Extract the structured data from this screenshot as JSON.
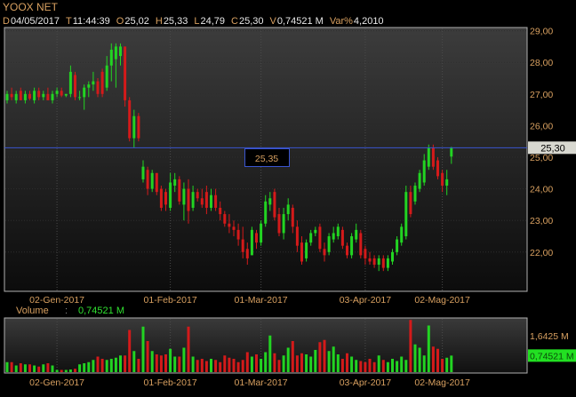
{
  "header": {
    "title": "YOOX NET",
    "info": [
      {
        "key": "D",
        "value": "04/05/2017"
      },
      {
        "key": "T",
        "value": "11:44:39"
      },
      {
        "key": "O",
        "value": "25,02"
      },
      {
        "key": "H",
        "value": "25,33"
      },
      {
        "key": "L",
        "value": "24,79"
      },
      {
        "key": "C",
        "value": "25,30"
      },
      {
        "key": "V",
        "value": "0,74521 M"
      },
      {
        "key": "Var%",
        "value": "4,2010"
      }
    ]
  },
  "volume_header": {
    "label": "Volume",
    "separator": ":",
    "value": "0,74521 M"
  },
  "colors": {
    "up": "#22d422",
    "down": "#d41a1a",
    "last_line": "#3a55d0",
    "axis_text": "#d8a060"
  },
  "chart_data": [
    {
      "type": "candlestick",
      "title": "YOOX NET",
      "y_axis_position": "right",
      "ylim": [
        20.75,
        29.1
      ],
      "y_ticks": [
        "29,00",
        "28,00",
        "27,00",
        "26,00",
        "25,00",
        "24,00",
        "23,00",
        "22,00"
      ],
      "y_tick_values": [
        29,
        28,
        27,
        26,
        25,
        24,
        23,
        22
      ],
      "x_ticks": [
        "02-Gen-2017",
        "01-Feb-2017",
        "01-Mar-2017",
        "03-Apr-2017",
        "02-Mag-2017"
      ],
      "x_tick_index": [
        11,
        36,
        56,
        79,
        96
      ],
      "grid": true,
      "last_price": {
        "value": 25.3,
        "label": "25,30"
      },
      "cursor_label": {
        "value": 25.35,
        "label": "25,35"
      },
      "ohlc_fields": [
        "open",
        "high",
        "low",
        "close"
      ],
      "candles": [
        [
          26.8,
          27.1,
          26.7,
          27.0
        ],
        [
          27.0,
          27.2,
          26.8,
          26.9
        ],
        [
          26.8,
          27.1,
          26.7,
          27.0
        ],
        [
          27.1,
          27.2,
          26.8,
          26.8
        ],
        [
          26.8,
          27.1,
          26.7,
          27.0
        ],
        [
          27.0,
          27.1,
          26.8,
          26.85
        ],
        [
          26.8,
          27.2,
          26.7,
          27.1
        ],
        [
          27.1,
          27.2,
          26.8,
          26.9
        ],
        [
          26.9,
          27.1,
          26.8,
          27.0
        ],
        [
          27.0,
          27.2,
          26.8,
          26.8
        ],
        [
          26.8,
          27.1,
          26.7,
          27.0
        ],
        [
          27.0,
          27.2,
          26.9,
          27.1
        ],
        [
          27.1,
          27.2,
          26.9,
          26.95
        ],
        [
          26.95,
          27.0,
          26.9,
          27.0
        ],
        [
          27.0,
          27.9,
          26.9,
          27.7
        ],
        [
          27.6,
          27.7,
          26.8,
          26.9
        ],
        [
          26.9,
          27.1,
          26.8,
          26.9
        ],
        [
          26.9,
          27.3,
          26.5,
          27.2
        ],
        [
          27.2,
          27.4,
          26.9,
          27.3
        ],
        [
          27.3,
          27.7,
          27.1,
          27.4
        ],
        [
          27.4,
          27.5,
          26.9,
          27.0
        ],
        [
          27.7,
          27.8,
          26.9,
          27.0
        ],
        [
          27.2,
          28.2,
          27.1,
          27.9
        ],
        [
          27.9,
          28.6,
          27.4,
          28.4
        ],
        [
          28.1,
          28.6,
          27.2,
          28.5
        ],
        [
          28.2,
          28.6,
          27.9,
          28.5
        ],
        [
          28.5,
          28.5,
          26.6,
          26.8
        ],
        [
          26.8,
          26.9,
          25.5,
          25.6
        ],
        [
          25.6,
          26.5,
          25.3,
          26.3
        ],
        [
          26.3,
          26.4,
          25.5,
          25.6
        ],
        [
          24.3,
          24.9,
          24.2,
          24.7
        ],
        [
          24.6,
          24.7,
          23.8,
          24.0
        ],
        [
          24.0,
          24.6,
          23.9,
          24.5
        ],
        [
          24.5,
          24.5,
          23.8,
          23.9
        ],
        [
          24.0,
          24.1,
          23.3,
          23.4
        ],
        [
          23.9,
          24.0,
          23.3,
          23.5
        ],
        [
          23.4,
          24.5,
          23.3,
          24.2
        ],
        [
          24.1,
          24.5,
          23.9,
          24.3
        ],
        [
          24.3,
          24.4,
          23.5,
          23.6
        ],
        [
          23.5,
          24.2,
          23.0,
          24.0
        ],
        [
          24.0,
          24.3,
          22.9,
          23.3
        ],
        [
          23.4,
          24.1,
          23.3,
          23.9
        ],
        [
          23.9,
          24.0,
          23.6,
          23.7
        ],
        [
          23.7,
          24.0,
          23.4,
          23.5
        ],
        [
          23.9,
          24.1,
          23.2,
          23.4
        ],
        [
          23.4,
          24.0,
          23.3,
          23.8
        ],
        [
          23.8,
          24.0,
          23.3,
          23.4
        ],
        [
          23.4,
          23.6,
          23.0,
          23.2
        ],
        [
          23.2,
          23.3,
          22.8,
          22.9
        ],
        [
          22.9,
          23.2,
          22.6,
          22.8
        ],
        [
          22.8,
          23.0,
          22.5,
          22.7
        ],
        [
          22.7,
          22.9,
          22.2,
          22.4
        ],
        [
          22.4,
          22.8,
          21.8,
          22.0
        ],
        [
          22.1,
          22.3,
          21.6,
          21.8
        ],
        [
          21.9,
          22.8,
          21.9,
          22.7
        ],
        [
          22.6,
          22.7,
          22.1,
          22.3
        ],
        [
          22.3,
          23.0,
          22.2,
          22.9
        ],
        [
          22.9,
          23.8,
          22.8,
          23.6
        ],
        [
          23.5,
          23.9,
          23.3,
          23.7
        ],
        [
          23.9,
          24.0,
          23.0,
          23.1
        ],
        [
          23.2,
          23.4,
          22.5,
          22.6
        ],
        [
          22.6,
          23.4,
          22.4,
          23.2
        ],
        [
          23.2,
          23.7,
          23.0,
          23.5
        ],
        [
          23.4,
          23.5,
          22.6,
          22.8
        ],
        [
          22.8,
          23.0,
          22.0,
          22.2
        ],
        [
          22.3,
          22.5,
          21.6,
          21.7
        ],
        [
          21.8,
          22.4,
          21.7,
          22.3
        ],
        [
          22.3,
          22.7,
          22.2,
          22.6
        ],
        [
          22.6,
          22.8,
          22.5,
          22.7
        ],
        [
          22.8,
          22.9,
          22.0,
          22.1
        ],
        [
          22.1,
          22.3,
          21.7,
          21.9
        ],
        [
          22.0,
          22.6,
          21.9,
          22.5
        ],
        [
          22.4,
          22.8,
          22.3,
          22.6
        ],
        [
          22.5,
          22.9,
          22.4,
          22.8
        ],
        [
          22.7,
          22.8,
          22.1,
          22.2
        ],
        [
          22.2,
          22.3,
          21.8,
          21.9
        ],
        [
          21.9,
          22.6,
          21.8,
          22.5
        ],
        [
          22.4,
          22.9,
          22.3,
          22.7
        ],
        [
          22.6,
          22.7,
          21.8,
          21.9
        ],
        [
          22.1,
          22.2,
          21.6,
          21.8
        ],
        [
          21.8,
          22.0,
          21.6,
          21.7
        ],
        [
          21.8,
          21.9,
          21.5,
          21.6
        ],
        [
          21.6,
          21.9,
          21.4,
          21.8
        ],
        [
          21.8,
          21.9,
          21.4,
          21.5
        ],
        [
          21.5,
          21.9,
          21.4,
          21.8
        ],
        [
          21.7,
          22.1,
          21.6,
          22.0
        ],
        [
          22.0,
          22.5,
          21.9,
          22.4
        ],
        [
          22.3,
          22.9,
          22.2,
          22.8
        ],
        [
          22.5,
          24.1,
          22.4,
          23.9
        ],
        [
          23.9,
          24.1,
          23.1,
          23.2
        ],
        [
          23.6,
          24.2,
          23.5,
          24.1
        ],
        [
          24.0,
          24.6,
          23.9,
          24.5
        ],
        [
          24.2,
          25.1,
          24.1,
          24.9
        ],
        [
          24.7,
          25.4,
          24.6,
          25.3
        ],
        [
          25.3,
          25.4,
          24.6,
          24.7
        ],
        [
          24.9,
          25.0,
          24.3,
          24.4
        ],
        [
          24.5,
          24.6,
          23.9,
          24.1
        ],
        [
          24.1,
          24.6,
          23.8,
          24.3
        ],
        [
          25.02,
          25.33,
          24.79,
          25.3
        ]
      ]
    },
    {
      "type": "bar",
      "title": "Volume",
      "unit": "M",
      "y_axis_position": "right",
      "ylim": [
        0,
        2.45
      ],
      "y_ticks": [
        "1,6425 M"
      ],
      "y_tick_values": [
        1.6425
      ],
      "last_value": {
        "value": 0.74521,
        "label": "0,74521 M"
      },
      "x_ticks": [
        "02-Gen-2017",
        "01-Feb-2017",
        "01-Mar-2017",
        "03-Apr-2017",
        "02-Mag-2017"
      ],
      "x_tick_index": [
        11,
        36,
        56,
        79,
        96
      ],
      "values": [
        0.45,
        0.45,
        0.3,
        0.4,
        0.35,
        0.35,
        0.3,
        0.25,
        0.35,
        0.4,
        0.3,
        0.1,
        0.1,
        0.1,
        0.12,
        0.15,
        0.35,
        0.4,
        0.45,
        0.55,
        0.7,
        0.6,
        0.55,
        0.6,
        0.65,
        0.75,
        0.75,
        1.9,
        0.95,
        0.6,
        2.05,
        1.4,
        0.95,
        0.8,
        0.75,
        0.8,
        1.05,
        0.7,
        0.7,
        1.1,
        2.05,
        0.7,
        0.55,
        0.6,
        0.5,
        0.6,
        0.55,
        0.45,
        0.75,
        0.65,
        0.6,
        0.45,
        0.55,
        0.9,
        0.7,
        0.8,
        0.6,
        0.9,
        1.65,
        0.85,
        0.55,
        0.75,
        1.1,
        1.4,
        0.75,
        0.85,
        0.8,
        0.7,
        1.0,
        1.35,
        1.45,
        0.95,
        1.15,
        0.8,
        0.6,
        0.85,
        0.7,
        0.55,
        0.5,
        0.45,
        0.6,
        0.45,
        0.75,
        0.55,
        0.45,
        0.6,
        0.5,
        0.7,
        0.55,
        2.35,
        1.25,
        1.1,
        0.75,
        2.1,
        1.15,
        1.05,
        0.6,
        0.65,
        0.74521
      ]
    }
  ]
}
